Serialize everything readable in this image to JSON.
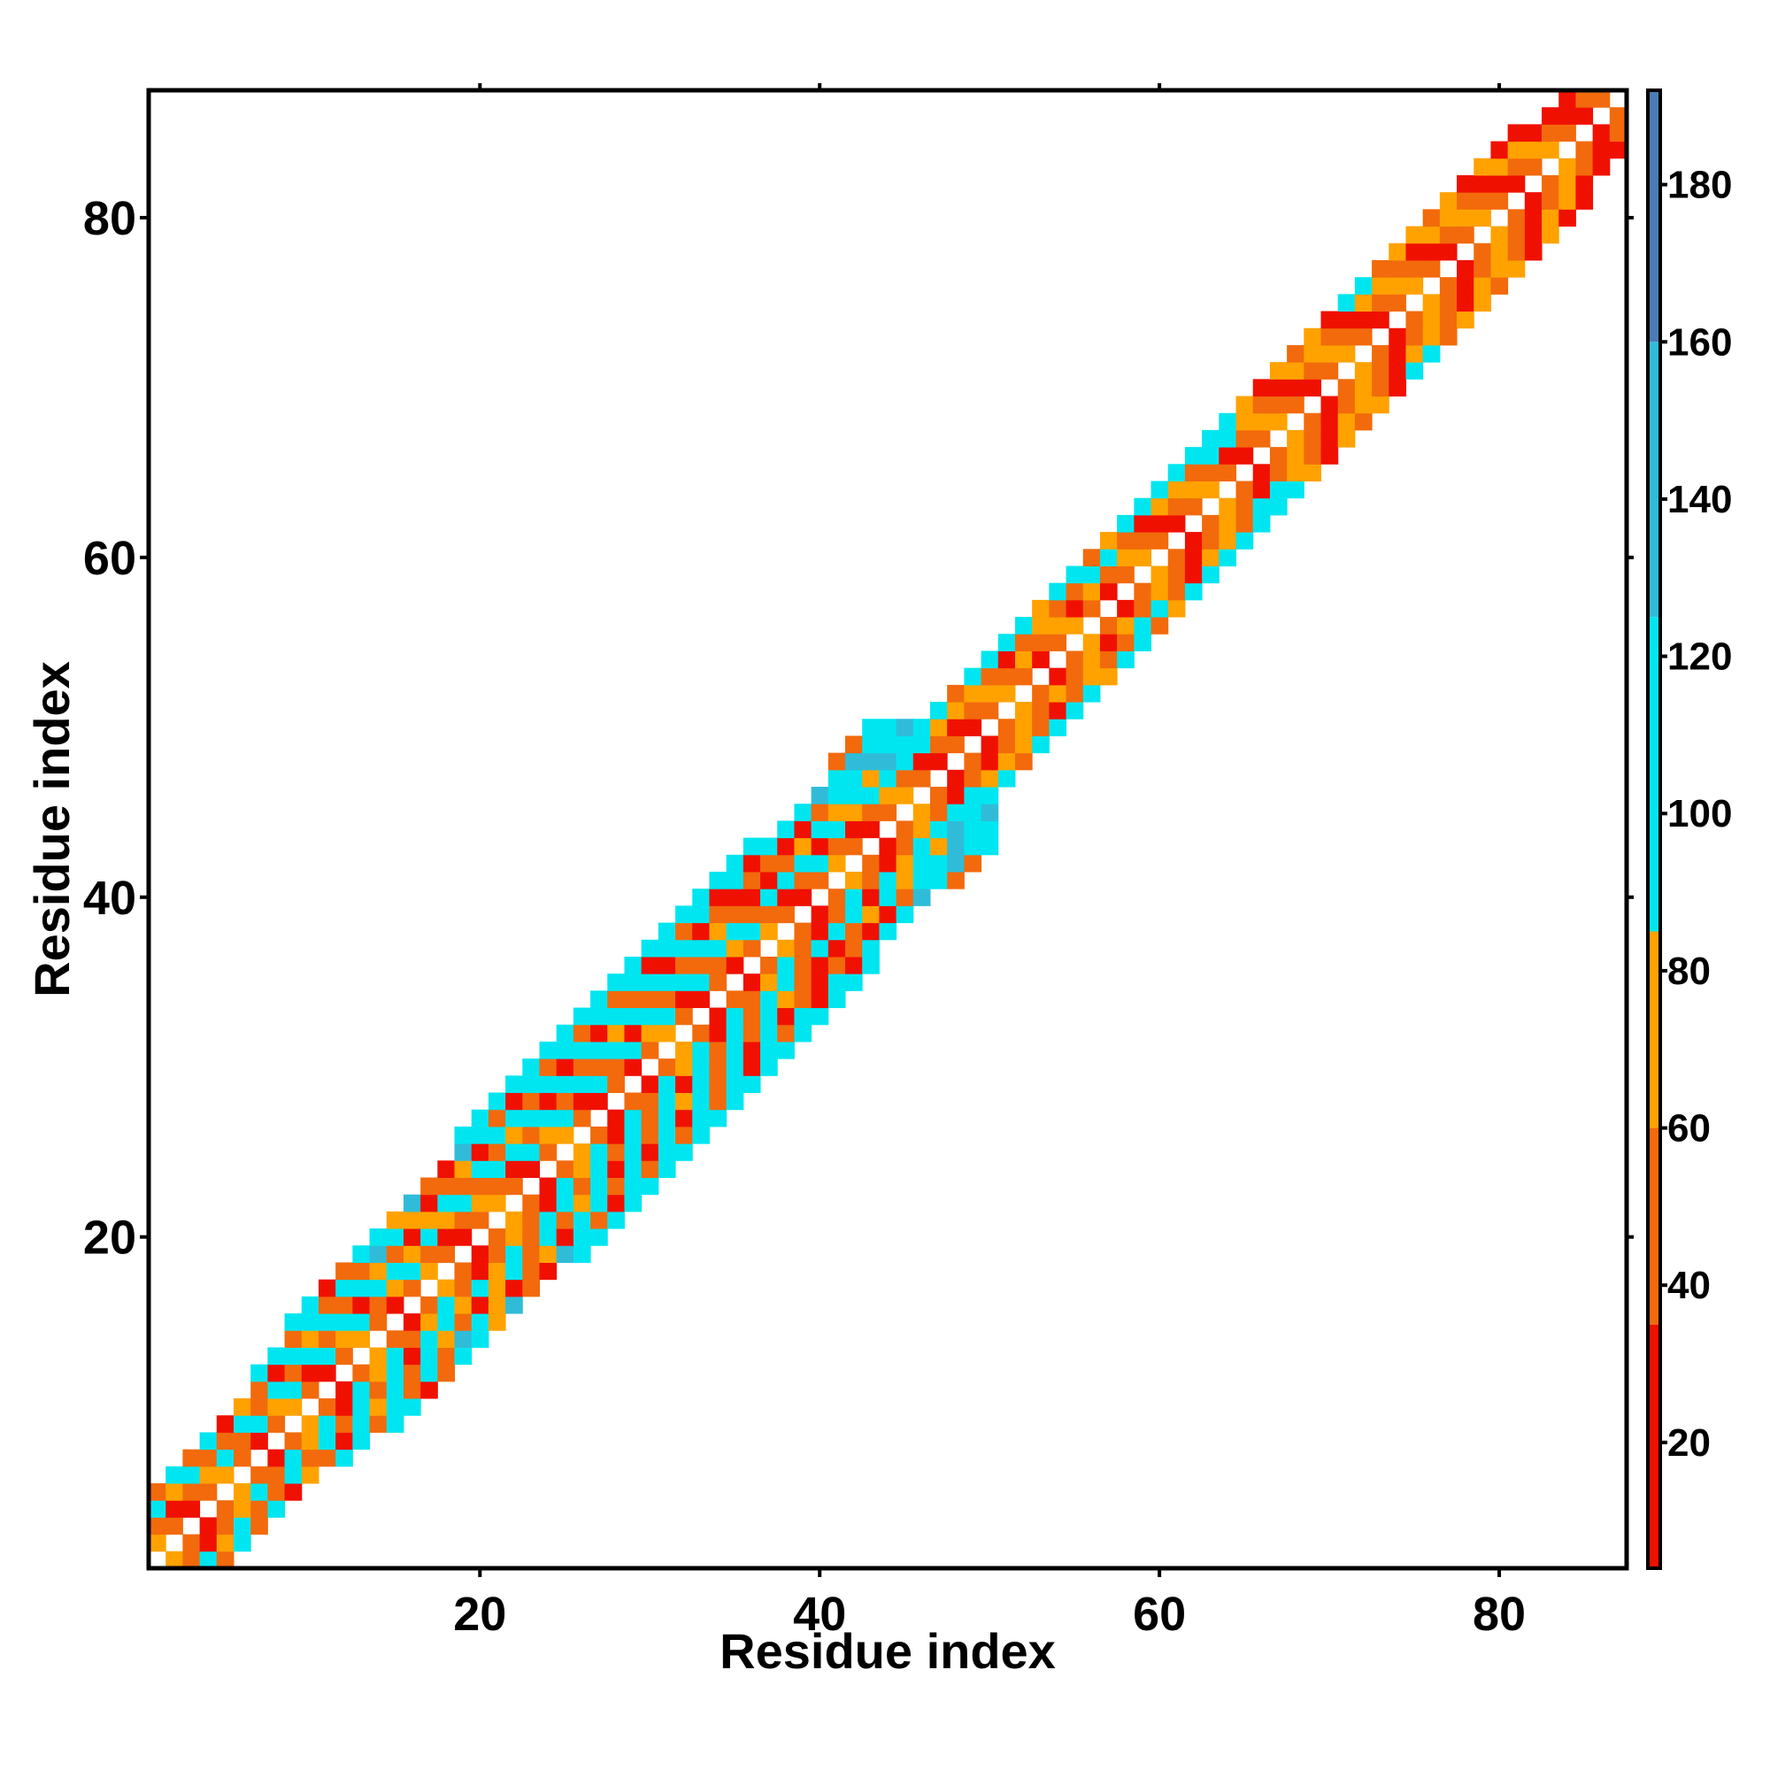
{
  "chart_data": {
    "type": "heatmap",
    "xlabel": "Residue index",
    "ylabel": "Residue index",
    "xlim": [
      0.5,
      87.5
    ],
    "ylim": [
      0.5,
      87.5
    ],
    "xticks": [
      20,
      40,
      60,
      80
    ],
    "yticks": [
      20,
      40,
      60,
      80
    ],
    "symmetric": true,
    "band": [
      [
        72,
        50,
        100,
        50
      ],
      [
        50,
        25,
        72,
        100
      ],
      [
        25,
        50,
        100,
        50
      ],
      [
        50,
        72,
        50,
        100
      ],
      [
        72,
        100,
        50,
        25
      ],
      [
        50,
        50,
        100,
        72
      ],
      [
        25,
        100,
        50,
        50,
        100
      ],
      [
        50,
        72,
        100,
        25,
        100
      ],
      [
        72,
        100,
        50,
        100,
        50,
        100
      ],
      [
        50,
        25,
        100,
        72,
        100,
        100
      ],
      [
        25,
        100,
        50,
        100,
        50,
        25
      ],
      [
        50,
        72,
        100,
        50,
        100,
        50
      ],
      [
        72,
        100,
        25,
        100,
        50,
        100
      ],
      [
        50,
        50,
        100,
        72,
        135,
        100
      ],
      [
        25,
        72,
        100,
        50,
        100,
        72
      ],
      [
        50,
        100,
        72,
        25,
        72,
        135
      ],
      [
        72,
        50,
        100,
        72,
        25,
        50
      ],
      [
        50,
        25,
        72,
        100,
        50,
        25
      ],
      [
        25,
        50,
        100,
        50,
        72,
        135,
        100
      ],
      [
        50,
        72,
        50,
        100,
        25,
        100,
        100
      ],
      [
        72,
        50,
        100,
        50,
        100,
        50,
        100
      ],
      [
        50,
        25,
        100,
        72,
        100,
        25,
        100
      ],
      [
        25,
        100,
        50,
        100,
        50,
        100,
        100
      ],
      [
        50,
        72,
        100,
        25,
        100,
        50,
        100
      ],
      [
        72,
        100,
        50,
        100,
        25,
        100,
        100
      ],
      [
        50,
        25,
        100,
        50,
        100,
        50,
        100
      ],
      [
        25,
        100,
        50,
        100,
        25,
        100,
        100
      ],
      [
        50,
        50,
        100,
        72,
        100,
        50,
        100
      ],
      [
        25,
        100,
        25,
        100,
        50,
        100,
        100
      ],
      [
        50,
        72,
        100,
        50,
        100,
        25,
        100
      ],
      [
        72,
        100,
        50,
        100,
        25,
        100,
        100
      ],
      [
        50,
        25,
        100,
        50,
        100,
        50,
        100
      ],
      [
        25,
        100,
        50,
        100,
        25,
        100,
        100
      ],
      [
        50,
        50,
        100,
        72,
        50,
        25,
        100
      ],
      [
        25,
        72,
        100,
        50,
        25,
        100,
        100
      ],
      [
        50,
        100,
        50,
        25,
        50,
        25,
        100
      ],
      [
        72,
        50,
        100,
        25,
        50,
        100
      ],
      [
        50,
        25,
        100,
        50,
        25,
        100
      ],
      [
        25,
        50,
        100,
        72,
        25,
        100
      ],
      [
        50,
        100,
        25,
        100,
        50,
        135
      ],
      [
        72,
        50,
        100,
        72,
        100,
        100,
        50
      ],
      [
        50,
        25,
        72,
        100,
        100,
        135,
        50
      ],
      [
        25,
        50,
        100,
        72,
        135,
        100,
        100
      ],
      [
        50,
        72,
        100,
        135,
        100,
        100
      ],
      [
        72,
        50,
        100,
        100,
        135
      ],
      [
        50,
        25,
        100,
        100
      ],
      [
        25,
        50,
        72,
        100
      ],
      [
        50,
        25,
        72,
        50
      ],
      [
        25,
        50,
        72,
        100
      ],
      [
        50,
        72,
        50,
        100
      ],
      [
        72,
        50,
        25,
        100
      ],
      [
        50,
        72,
        50,
        100
      ],
      [
        25,
        50,
        72,
        72
      ],
      [
        50,
        72,
        50,
        100
      ],
      [
        72,
        25,
        50,
        100
      ],
      [
        50,
        72,
        100,
        50
      ],
      [
        25,
        50,
        100,
        72
      ],
      [
        50,
        72,
        50,
        100
      ],
      [
        72,
        50,
        25,
        100
      ],
      [
        50,
        25,
        72,
        100
      ],
      [
        25,
        50,
        72,
        100
      ],
      [
        50,
        72,
        50,
        100
      ],
      [
        72,
        50,
        100,
        100
      ],
      [
        50,
        25,
        100,
        100
      ],
      [
        25,
        50,
        72,
        72
      ],
      [
        50,
        72,
        50,
        25
      ],
      [
        72,
        50,
        25,
        72
      ],
      [
        50,
        25,
        72,
        50
      ],
      [
        25,
        50,
        72,
        72
      ],
      [
        50,
        72,
        50,
        25
      ],
      [
        72,
        50,
        25,
        100
      ],
      [
        50,
        25,
        72,
        100
      ],
      [
        25,
        50,
        72,
        50
      ],
      [
        50,
        72,
        50,
        72
      ],
      [
        72,
        50,
        25,
        72
      ],
      [
        50,
        25,
        72,
        50
      ],
      [
        25,
        50,
        72,
        72
      ],
      [
        50,
        72,
        50,
        25
      ],
      [
        72,
        50,
        25,
        72
      ],
      [
        50,
        25,
        72,
        25
      ],
      [
        25,
        50,
        72,
        25
      ],
      [
        50,
        72,
        25
      ],
      [
        72,
        50,
        25
      ],
      [
        50,
        25,
        25
      ],
      [
        25,
        50
      ],
      [
        50
      ]
    ],
    "colorscale": [
      {
        "from": 4,
        "to": 35,
        "color": "#f01000"
      },
      {
        "from": 35,
        "to": 60,
        "color": "#f26a0c"
      },
      {
        "from": 60,
        "to": 85,
        "color": "#ffa200"
      },
      {
        "from": 85,
        "to": 125,
        "color": "#00e6f0"
      },
      {
        "from": 125,
        "to": 160,
        "color": "#30bcd8"
      },
      {
        "from": 160,
        "to": 192,
        "color": "#4c7cb4"
      }
    ],
    "colorbar_lim": [
      4,
      192
    ],
    "colorbar_ticks": [
      20,
      40,
      60,
      80,
      100,
      120,
      140,
      160,
      180
    ]
  }
}
